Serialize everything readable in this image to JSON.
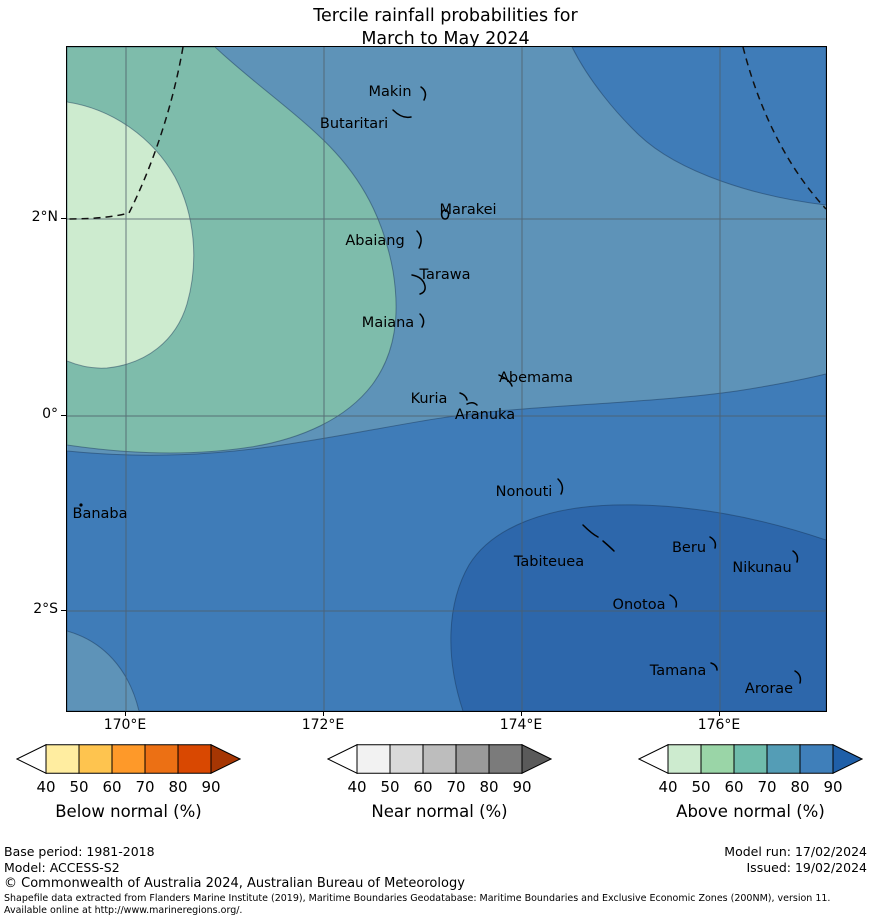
{
  "title": {
    "line1": "Tercile rainfall probabilities for",
    "line2": "March to May 2024"
  },
  "map": {
    "islands": [
      "Makin",
      "Butaritari",
      "Marakei",
      "Abaiang",
      "Tarawa",
      "Maiana",
      "Abemama",
      "Kuria",
      "Aranuka",
      "Nonouti",
      "Banaba",
      "Tabiteuea",
      "Beru",
      "Nikunau",
      "Onotoa",
      "Tamana",
      "Arorae"
    ],
    "colors": {
      "light_green": "#cdebcf",
      "teal": "#7ebcab",
      "steel_blue": "#5e93b8",
      "medium_blue": "#3f7cb8",
      "dark_blue": "#2d67ab"
    }
  },
  "axes": {
    "y_ticks": [
      "2°N",
      "0°",
      "2°S"
    ],
    "x_ticks": [
      "170°E",
      "172°E",
      "174°E",
      "176°E"
    ]
  },
  "legends": [
    {
      "label": "Below normal (%)",
      "ticks": [
        "40",
        "50",
        "60",
        "70",
        "80",
        "90"
      ],
      "cell_colors": [
        "#ffeda0",
        "#fec44f",
        "#fe9929",
        "#ec7014",
        "#d94801"
      ],
      "left_arrow_color": "#ffffff",
      "right_arrow_color": "#a63603"
    },
    {
      "label": "Near normal (%)",
      "ticks": [
        "40",
        "50",
        "60",
        "70",
        "80",
        "90"
      ],
      "cell_colors": [
        "#f2f2f2",
        "#d9d9d9",
        "#bdbdbd",
        "#9a9a9a",
        "#7b7b7b"
      ],
      "left_arrow_color": "#ffffff",
      "right_arrow_color": "#5a5a5a"
    },
    {
      "label": "Above normal (%)",
      "ticks": [
        "40",
        "50",
        "60",
        "70",
        "80",
        "90"
      ],
      "cell_colors": [
        "#cdebcf",
        "#9ad5a7",
        "#6fbcab",
        "#549db6",
        "#3f7fba"
      ],
      "left_arrow_color": "#ffffff",
      "right_arrow_color": "#1f5fa8"
    }
  ],
  "footer": {
    "base_period": "Base period: 1981-2018",
    "model": "Model: ACCESS-S2",
    "model_run": "Model run: 17/02/2024",
    "issued": "Issued: 19/02/2024",
    "copyright": "© Commonwealth of Australia 2024, Australian Bureau of Meteorology",
    "attribution": "Shapefile data extracted from Flanders Marine Institute (2019), Maritime Boundaries Geodatabase: Maritime Boundaries and Exclusive Economic Zones (200NM), version 11. Available online at http://www.marineregions.org/."
  }
}
